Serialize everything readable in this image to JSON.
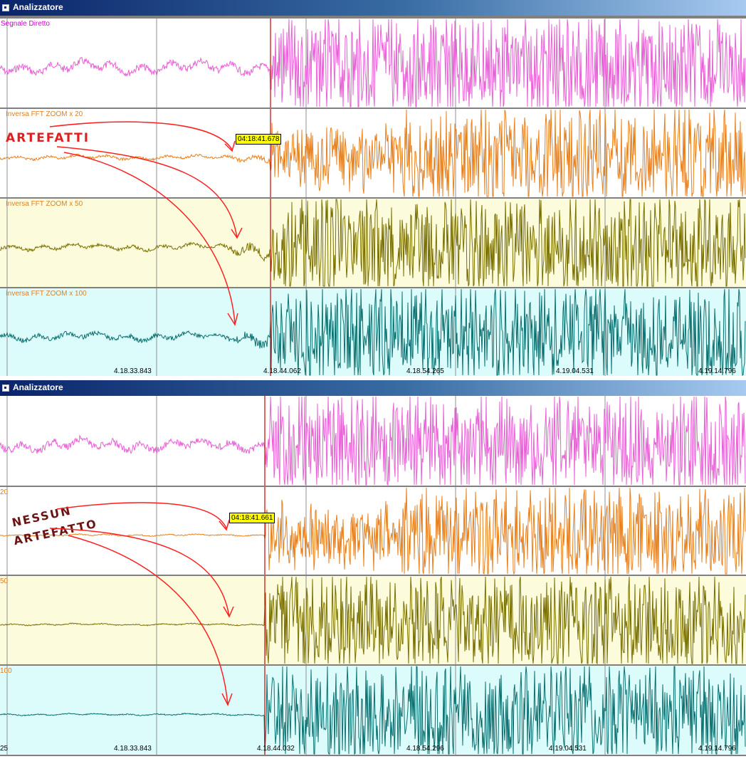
{
  "windows": [
    {
      "title": "Analizzatore",
      "panels": [
        {
          "title": "Segnale Diretto",
          "title_color": "#cc00cc",
          "color": "#e860d6",
          "bg": "#ffffff"
        },
        {
          "title": "Inversa FFT ZOOM x 20",
          "title_color": "#e08020",
          "color": "#e8801c",
          "bg": "#ffffff"
        },
        {
          "title": "Inversa FFT ZOOM x 50",
          "title_color": "#e08020",
          "color": "#7a7000",
          "bg": "#fcfcdc"
        },
        {
          "title": "Inversa FFT ZOOM x 100",
          "title_color": "#e08020",
          "color": "#0a7070",
          "bg": "#dcfcfc"
        }
      ],
      "marker_label": "04:18:41.678",
      "time_ticks": [
        "4.18.33.843",
        "4.18.44.062",
        "4.18.54.265",
        "4.19.04.531",
        "4.19.14.796"
      ],
      "annotation": [
        "ARTEFATTI"
      ]
    },
    {
      "title": "Analizzatore",
      "panels": [
        {
          "title": "",
          "title_color": "#cc00cc",
          "color": "#e860d6",
          "bg": "#ffffff"
        },
        {
          "title": "20",
          "title_color": "#e08020",
          "color": "#e8801c",
          "bg": "#ffffff"
        },
        {
          "title": "50",
          "title_color": "#e08020",
          "color": "#7a7000",
          "bg": "#fcfcdc"
        },
        {
          "title": "100",
          "title_color": "#e08020",
          "color": "#0a7070",
          "bg": "#dcfcfc"
        }
      ],
      "marker_label": "04:18:41.661",
      "time_ticks": [
        "25",
        "4.18.33.843",
        "4.18.44.032",
        "4.18.54.296",
        "4.19.04.531",
        "4.19.14.796"
      ],
      "annotation": [
        "NESSUN",
        "ARTEFATTO"
      ]
    }
  ],
  "colors": {
    "titlebar": "#0a246a",
    "cursor": "#cc0000",
    "arrow": "#ff2020",
    "grid": "#808080"
  }
}
